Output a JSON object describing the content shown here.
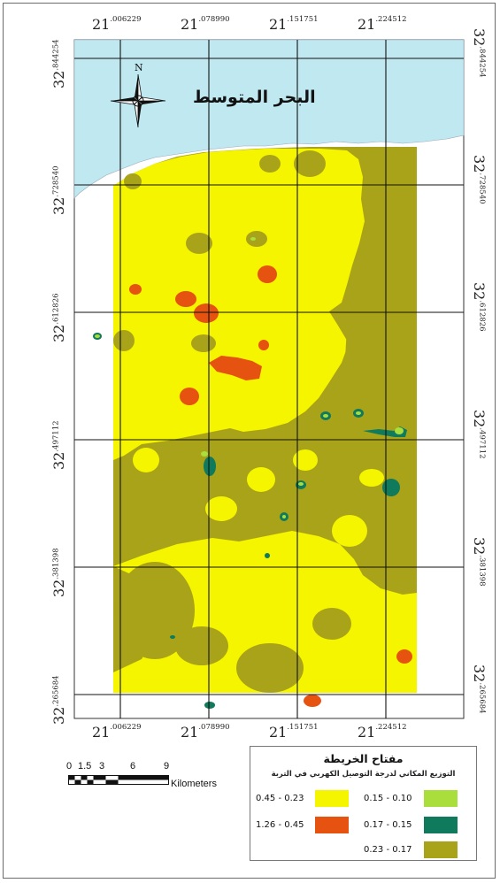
{
  "map": {
    "sea_label": "البحر المتوسط",
    "north_label": "N",
    "x_ticks": [
      {
        "base": "21",
        "sup": ".006229"
      },
      {
        "base": "21",
        "sup": ".078990"
      },
      {
        "base": "21",
        "sup": ".151751"
      },
      {
        "base": "21",
        "sup": ".224512"
      }
    ],
    "y_ticks": [
      {
        "base": "32",
        "sup": ".844254"
      },
      {
        "base": "32",
        "sup": ".728540"
      },
      {
        "base": "32",
        "sup": ".612826"
      },
      {
        "base": "32",
        "sup": ".497112"
      },
      {
        "base": "32",
        "sup": ".381398"
      },
      {
        "base": "32",
        "sup": ".265684"
      }
    ],
    "colors": {
      "sea": "#bfe8f1",
      "class_low": "#aade3c",
      "class_mid_low": "#0f7a5c",
      "class_mid": "#a9a319",
      "class_high_mid": "#f5f500",
      "class_high": "#e65210"
    }
  },
  "scale_bar": {
    "ticks": [
      "0",
      "1.5",
      "3",
      "6",
      "9"
    ],
    "unit": "Kilometers"
  },
  "legend": {
    "title": "مفتاح الخريطة",
    "subtitle": "التوزيع المكاني لدرجة التوصيل الكهربي في التربة",
    "items": [
      {
        "label": "0.15 - 0.10",
        "color": "#aade3c"
      },
      {
        "label": "0.45 - 0.23",
        "color": "#f5f500"
      },
      {
        "label": "0.17 - 0.15",
        "color": "#0f7a5c"
      },
      {
        "label": "1.26 - 0.45",
        "color": "#e65210"
      },
      {
        "label": "0.23 - 0.17",
        "color": "#a9a319"
      }
    ]
  }
}
